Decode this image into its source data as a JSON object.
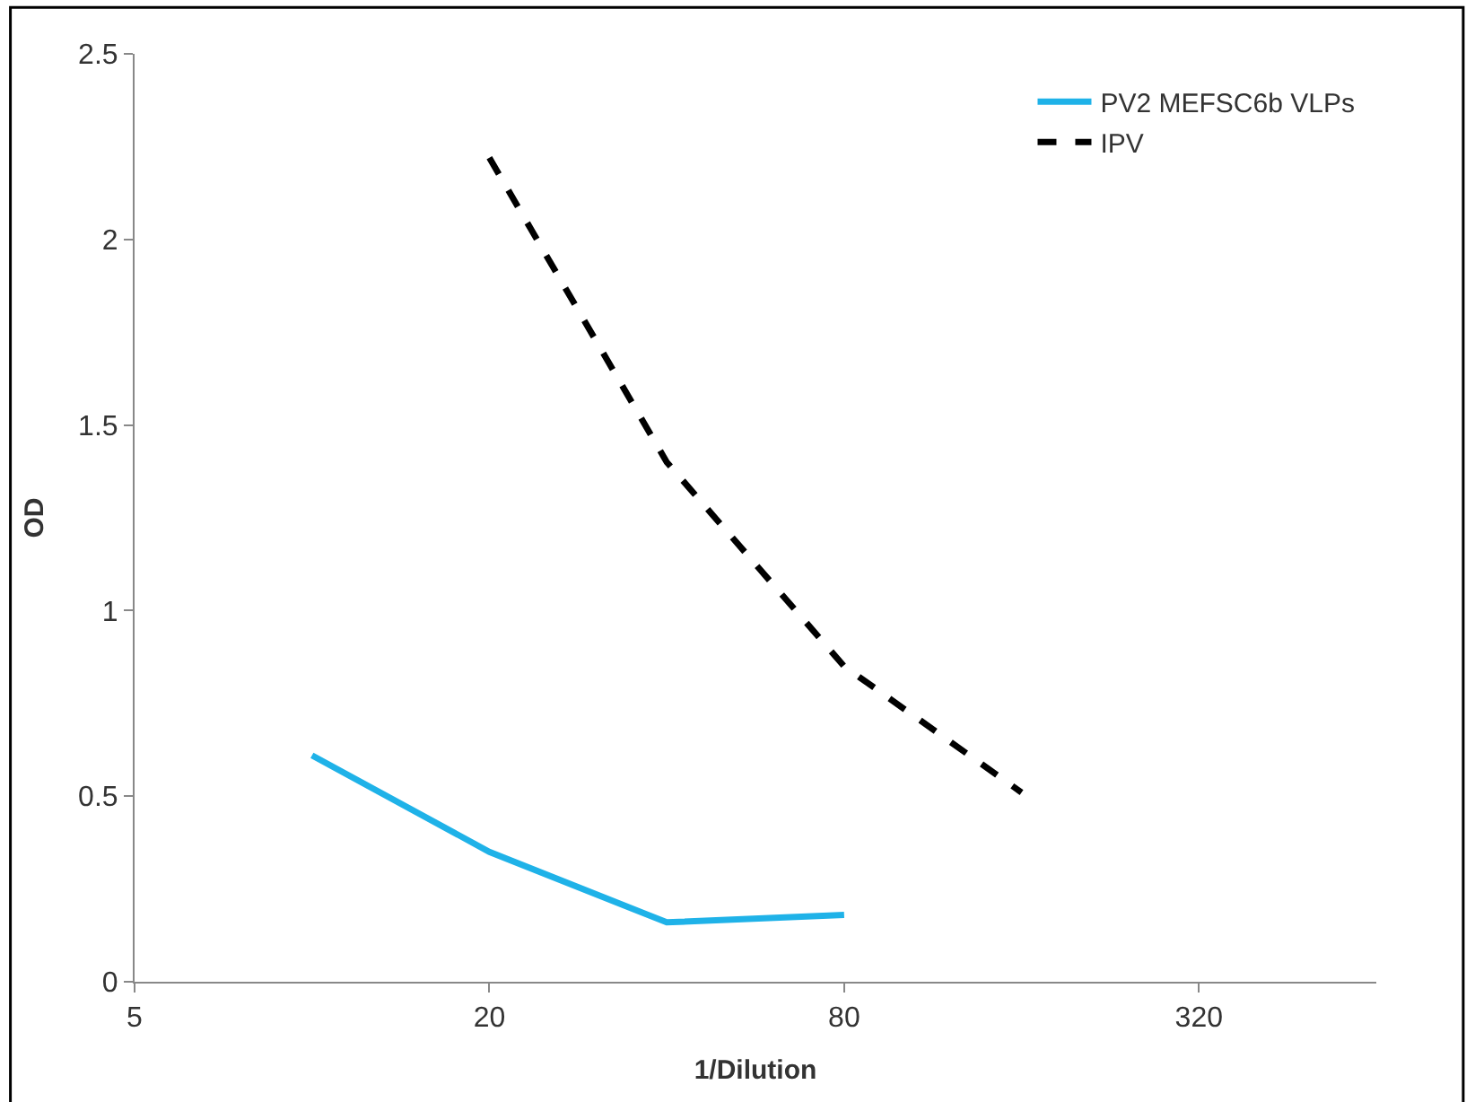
{
  "chart_data": {
    "type": "line",
    "xlabel": "1/Dilution",
    "ylabel": "OD",
    "log": "x",
    "xlim": [
      5,
      640
    ],
    "xticks": [
      5,
      20,
      80,
      320
    ],
    "ylim": [
      0,
      2.5
    ],
    "yticks": [
      0,
      0.5,
      1,
      1.5,
      2,
      2.5
    ],
    "grid": false,
    "legend": "top right",
    "marker": "none",
    "series": [
      {
        "name": "PV2 MEFSC6b VLPs",
        "color": "#1fb2e8",
        "line_style": "solid",
        "x": [
          10,
          20,
          40,
          80
        ],
        "values": [
          0.61,
          0.35,
          0.16,
          0.18
        ]
      },
      {
        "name": "IPV",
        "color": "#000000",
        "line_style": "dashed",
        "x": [
          20,
          40,
          80,
          160
        ],
        "values": [
          2.22,
          1.4,
          0.85,
          0.51
        ]
      }
    ]
  }
}
